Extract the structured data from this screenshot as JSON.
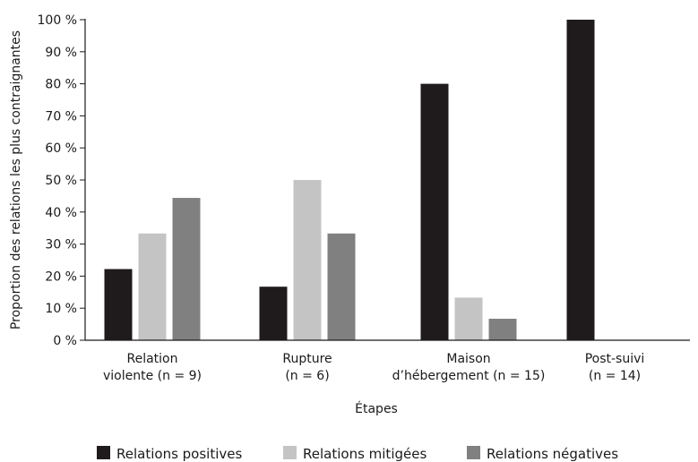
{
  "chart_data": {
    "type": "bar",
    "categories": [
      [
        "Relation",
        "violente (n = 9)"
      ],
      [
        "Rupture",
        "(n = 6)"
      ],
      [
        "Maison",
        "d’hébergement (n = 15)"
      ],
      [
        "Post-suivi",
        "(n = 14)"
      ]
    ],
    "series": [
      {
        "name": "Relations positives",
        "color": "#1f1a1b",
        "values": [
          22.2,
          16.7,
          80,
          100
        ]
      },
      {
        "name": "Relations mitigées",
        "color": "#c4c4c4",
        "values": [
          33.3,
          50,
          13.3,
          0
        ]
      },
      {
        "name": "Relations négatives",
        "color": "#808080",
        "values": [
          44.4,
          33.3,
          6.7,
          0
        ]
      }
    ],
    "xlabel": "Étapes",
    "ylabel": "Proportion des relations les plus contraignantes",
    "ylim": [
      0,
      100
    ],
    "yticks": [
      0,
      10,
      20,
      30,
      40,
      50,
      60,
      70,
      80,
      90,
      100
    ],
    "ytick_suffix": " %",
    "grid": false,
    "legend_position": "bottom"
  }
}
